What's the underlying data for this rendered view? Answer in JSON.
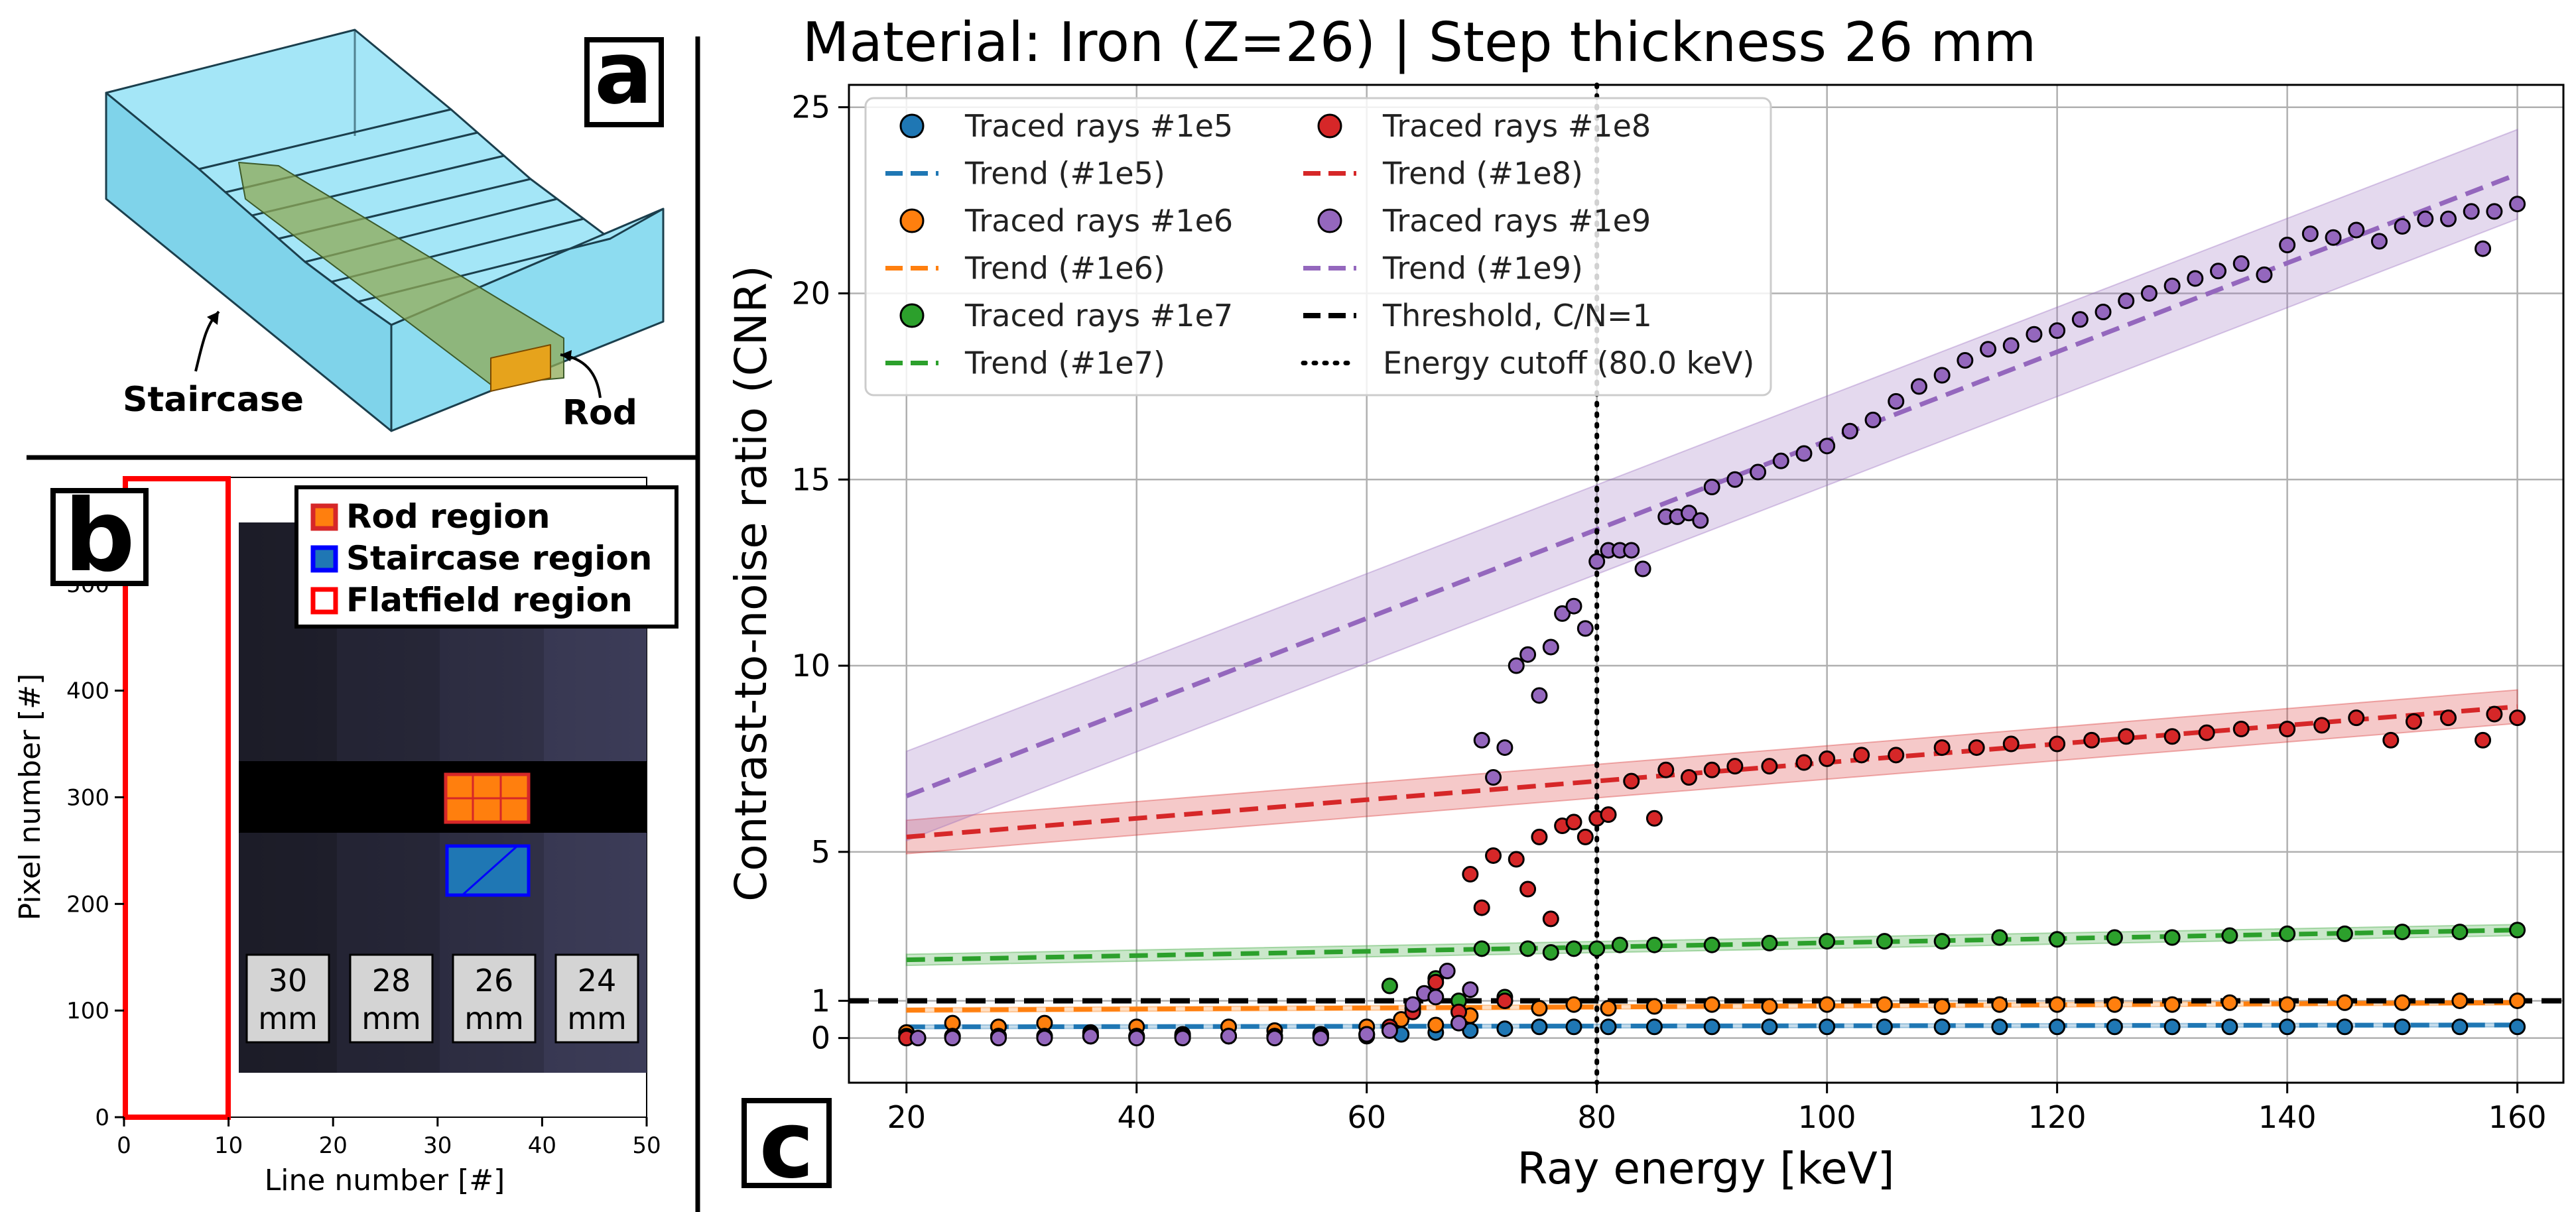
{
  "panels": {
    "a": {
      "letter": "a",
      "staircase_label": "Staircase",
      "rod_label": "Rod"
    },
    "b": {
      "letter": "b",
      "xlabel": "Line number [#]",
      "ylabel": "Pixel number [#]",
      "xticks": [
        0,
        10,
        20,
        30,
        40,
        50
      ],
      "yticks": [
        0,
        100,
        200,
        300,
        400,
        500
      ],
      "xlim": [
        0,
        50
      ],
      "ylim": [
        0,
        600
      ],
      "legend": [
        {
          "label": "Rod region",
          "color": "#ff7f0e",
          "edge": "#d62728"
        },
        {
          "label": "Staircase region",
          "color": "#1f77b4",
          "edge": "#0000ff"
        },
        {
          "label": "Flatfield region",
          "color": "#ffffff",
          "edge": "#ff0000"
        }
      ],
      "steps": [
        {
          "value": "30",
          "unit": "mm"
        },
        {
          "value": "28",
          "unit": "mm"
        },
        {
          "value": "26",
          "unit": "mm"
        },
        {
          "value": "24",
          "unit": "mm"
        }
      ]
    },
    "c": {
      "letter": "c"
    }
  },
  "chart_data": {
    "type": "scatter",
    "title": "Material: Iron (Z=26) | Step thickness 26 mm",
    "xlabel": "Ray energy [keV]",
    "ylabel": "Contrast-to-noise ratio (CNR)",
    "xlim": [
      15,
      164
    ],
    "ylim": [
      -1.2,
      25.6
    ],
    "xticks": [
      20,
      40,
      60,
      80,
      100,
      120,
      140,
      160
    ],
    "yticks": [
      0,
      1,
      5,
      10,
      15,
      20,
      25
    ],
    "grid": true,
    "legend_position": "top-left",
    "threshold": {
      "label": "Threshold, C/N=1",
      "y": 1
    },
    "cutoff": {
      "label": "Energy cutoff (80.0 keV)",
      "x": 80
    },
    "series": [
      {
        "name": "Traced rays #1e5",
        "trend_name": "Trend (#1e5)",
        "color": "#1f77b4",
        "trend": {
          "x": [
            20,
            160
          ],
          "y": [
            0.3,
            0.35
          ],
          "band": 0.05
        },
        "points": [
          [
            20,
            0.0
          ],
          [
            24,
            0.05
          ],
          [
            28,
            0.05
          ],
          [
            32,
            0.05
          ],
          [
            36,
            0.05
          ],
          [
            40,
            0.05
          ],
          [
            44,
            0.05
          ],
          [
            48,
            0.05
          ],
          [
            52,
            0.05
          ],
          [
            56,
            0.05
          ],
          [
            60,
            0.05
          ],
          [
            63,
            0.1
          ],
          [
            66,
            0.15
          ],
          [
            69,
            0.2
          ],
          [
            72,
            0.25
          ],
          [
            75,
            0.3
          ],
          [
            78,
            0.3
          ],
          [
            81,
            0.3
          ],
          [
            85,
            0.3
          ],
          [
            90,
            0.3
          ],
          [
            95,
            0.3
          ],
          [
            100,
            0.3
          ],
          [
            105,
            0.3
          ],
          [
            110,
            0.3
          ],
          [
            115,
            0.3
          ],
          [
            120,
            0.3
          ],
          [
            125,
            0.3
          ],
          [
            130,
            0.3
          ],
          [
            135,
            0.3
          ],
          [
            140,
            0.3
          ],
          [
            145,
            0.3
          ],
          [
            150,
            0.3
          ],
          [
            155,
            0.3
          ],
          [
            160,
            0.3
          ]
        ]
      },
      {
        "name": "Traced rays #1e6",
        "trend_name": "Trend (#1e6)",
        "color": "#ff7f0e",
        "trend": {
          "x": [
            20,
            160
          ],
          "y": [
            0.75,
            0.95
          ],
          "band": 0.06
        },
        "points": [
          [
            20,
            0.15
          ],
          [
            24,
            0.4
          ],
          [
            28,
            0.3
          ],
          [
            32,
            0.4
          ],
          [
            36,
            0.15
          ],
          [
            40,
            0.3
          ],
          [
            44,
            0.1
          ],
          [
            48,
            0.3
          ],
          [
            52,
            0.2
          ],
          [
            56,
            0.1
          ],
          [
            60,
            0.3
          ],
          [
            63,
            0.5
          ],
          [
            66,
            0.35
          ],
          [
            69,
            0.6
          ],
          [
            72,
            1.0
          ],
          [
            75,
            0.8
          ],
          [
            78,
            0.9
          ],
          [
            81,
            0.8
          ],
          [
            85,
            0.85
          ],
          [
            90,
            0.9
          ],
          [
            95,
            0.85
          ],
          [
            100,
            0.9
          ],
          [
            105,
            0.9
          ],
          [
            110,
            0.85
          ],
          [
            115,
            0.9
          ],
          [
            120,
            0.9
          ],
          [
            125,
            0.9
          ],
          [
            130,
            0.9
          ],
          [
            135,
            0.95
          ],
          [
            140,
            0.9
          ],
          [
            145,
            0.95
          ],
          [
            150,
            0.95
          ],
          [
            155,
            1.0
          ],
          [
            160,
            1.0
          ]
        ]
      },
      {
        "name": "Traced rays #1e7",
        "trend_name": "Trend (#1e7)",
        "color": "#2ca02c",
        "trend": {
          "x": [
            20,
            160
          ],
          "y": [
            2.1,
            2.9
          ],
          "band": 0.15
        },
        "points": [
          [
            20,
            0.05
          ],
          [
            24,
            0.05
          ],
          [
            28,
            0.05
          ],
          [
            32,
            0.05
          ],
          [
            36,
            0.1
          ],
          [
            40,
            0.05
          ],
          [
            44,
            0.05
          ],
          [
            48,
            0.05
          ],
          [
            52,
            0.05
          ],
          [
            56,
            0.1
          ],
          [
            60,
            0.1
          ],
          [
            62,
            1.4
          ],
          [
            64,
            0.8
          ],
          [
            66,
            1.6
          ],
          [
            68,
            1.0
          ],
          [
            70,
            2.4
          ],
          [
            72,
            1.1
          ],
          [
            74,
            2.4
          ],
          [
            76,
            2.3
          ],
          [
            78,
            2.4
          ],
          [
            80,
            2.4
          ],
          [
            82,
            2.5
          ],
          [
            85,
            2.5
          ],
          [
            90,
            2.5
          ],
          [
            95,
            2.55
          ],
          [
            100,
            2.6
          ],
          [
            105,
            2.6
          ],
          [
            110,
            2.6
          ],
          [
            115,
            2.7
          ],
          [
            120,
            2.65
          ],
          [
            125,
            2.7
          ],
          [
            130,
            2.7
          ],
          [
            135,
            2.75
          ],
          [
            140,
            2.8
          ],
          [
            145,
            2.8
          ],
          [
            150,
            2.85
          ],
          [
            155,
            2.85
          ],
          [
            160,
            2.9
          ]
        ]
      },
      {
        "name": "Traced rays #1e8",
        "trend_name": "Trend (#1e8)",
        "color": "#d62728",
        "trend": {
          "x": [
            20,
            160
          ],
          "y": [
            5.4,
            8.9
          ],
          "band": 0.45
        },
        "points": [
          [
            20,
            0.0
          ],
          [
            24,
            0.05
          ],
          [
            28,
            0.05
          ],
          [
            32,
            0.05
          ],
          [
            36,
            0.05
          ],
          [
            40,
            0.05
          ],
          [
            44,
            0.05
          ],
          [
            48,
            0.05
          ],
          [
            52,
            0.05
          ],
          [
            56,
            0.05
          ],
          [
            60,
            0.1
          ],
          [
            62,
            0.3
          ],
          [
            64,
            0.7
          ],
          [
            66,
            1.5
          ],
          [
            68,
            0.7
          ],
          [
            69,
            4.4
          ],
          [
            70,
            3.5
          ],
          [
            71,
            4.9
          ],
          [
            72,
            1.0
          ],
          [
            73,
            4.8
          ],
          [
            74,
            4.0
          ],
          [
            75,
            5.4
          ],
          [
            76,
            3.2
          ],
          [
            77,
            5.7
          ],
          [
            78,
            5.8
          ],
          [
            79,
            5.4
          ],
          [
            80,
            5.9
          ],
          [
            81,
            6.0
          ],
          [
            83,
            6.9
          ],
          [
            85,
            5.9
          ],
          [
            86,
            7.2
          ],
          [
            88,
            7.0
          ],
          [
            90,
            7.2
          ],
          [
            92,
            7.3
          ],
          [
            95,
            7.3
          ],
          [
            98,
            7.4
          ],
          [
            100,
            7.5
          ],
          [
            103,
            7.6
          ],
          [
            106,
            7.6
          ],
          [
            110,
            7.8
          ],
          [
            113,
            7.8
          ],
          [
            116,
            7.9
          ],
          [
            120,
            7.9
          ],
          [
            123,
            8.0
          ],
          [
            126,
            8.1
          ],
          [
            130,
            8.1
          ],
          [
            133,
            8.2
          ],
          [
            136,
            8.3
          ],
          [
            140,
            8.3
          ],
          [
            143,
            8.4
          ],
          [
            146,
            8.6
          ],
          [
            149,
            8.0
          ],
          [
            151,
            8.5
          ],
          [
            154,
            8.6
          ],
          [
            157,
            8.0
          ],
          [
            158,
            8.7
          ],
          [
            160,
            8.6
          ]
        ]
      },
      {
        "name": "Traced rays #1e9",
        "trend_name": "Trend (#1e9)",
        "color": "#9467bd",
        "trend": {
          "x": [
            20,
            160
          ],
          "y": [
            6.5,
            23.2
          ],
          "band": 1.2
        },
        "points": [
          [
            21,
            0.0
          ],
          [
            24,
            0.0
          ],
          [
            28,
            0.0
          ],
          [
            32,
            0.0
          ],
          [
            36,
            0.05
          ],
          [
            40,
            0.0
          ],
          [
            44,
            0.0
          ],
          [
            48,
            0.05
          ],
          [
            52,
            0.0
          ],
          [
            56,
            0.0
          ],
          [
            60,
            0.1
          ],
          [
            62,
            0.2
          ],
          [
            64,
            0.9
          ],
          [
            65,
            1.2
          ],
          [
            66,
            1.1
          ],
          [
            67,
            1.8
          ],
          [
            68,
            0.4
          ],
          [
            69,
            1.3
          ],
          [
            70,
            8.0
          ],
          [
            71,
            7.0
          ],
          [
            72,
            7.8
          ],
          [
            73,
            10.0
          ],
          [
            74,
            10.3
          ],
          [
            75,
            9.2
          ],
          [
            76,
            10.5
          ],
          [
            77,
            11.4
          ],
          [
            78,
            11.6
          ],
          [
            79,
            11.0
          ],
          [
            80,
            12.8
          ],
          [
            81,
            13.1
          ],
          [
            82,
            13.1
          ],
          [
            83,
            13.1
          ],
          [
            84,
            12.6
          ],
          [
            86,
            14.0
          ],
          [
            87,
            14.0
          ],
          [
            88,
            14.1
          ],
          [
            89,
            13.9
          ],
          [
            90,
            14.8
          ],
          [
            92,
            15.0
          ],
          [
            94,
            15.2
          ],
          [
            96,
            15.5
          ],
          [
            98,
            15.7
          ],
          [
            100,
            15.9
          ],
          [
            102,
            16.3
          ],
          [
            104,
            16.6
          ],
          [
            106,
            17.1
          ],
          [
            108,
            17.5
          ],
          [
            110,
            17.8
          ],
          [
            112,
            18.2
          ],
          [
            114,
            18.5
          ],
          [
            116,
            18.6
          ],
          [
            118,
            18.9
          ],
          [
            120,
            19.0
          ],
          [
            122,
            19.3
          ],
          [
            124,
            19.5
          ],
          [
            126,
            19.8
          ],
          [
            128,
            20.0
          ],
          [
            130,
            20.2
          ],
          [
            132,
            20.4
          ],
          [
            134,
            20.6
          ],
          [
            136,
            20.8
          ],
          [
            138,
            20.5
          ],
          [
            140,
            21.3
          ],
          [
            142,
            21.6
          ],
          [
            144,
            21.5
          ],
          [
            146,
            21.7
          ],
          [
            148,
            21.4
          ],
          [
            150,
            21.8
          ],
          [
            152,
            22.0
          ],
          [
            154,
            22.0
          ],
          [
            156,
            22.2
          ],
          [
            157,
            21.2
          ],
          [
            158,
            22.2
          ],
          [
            160,
            22.4
          ]
        ]
      }
    ]
  }
}
